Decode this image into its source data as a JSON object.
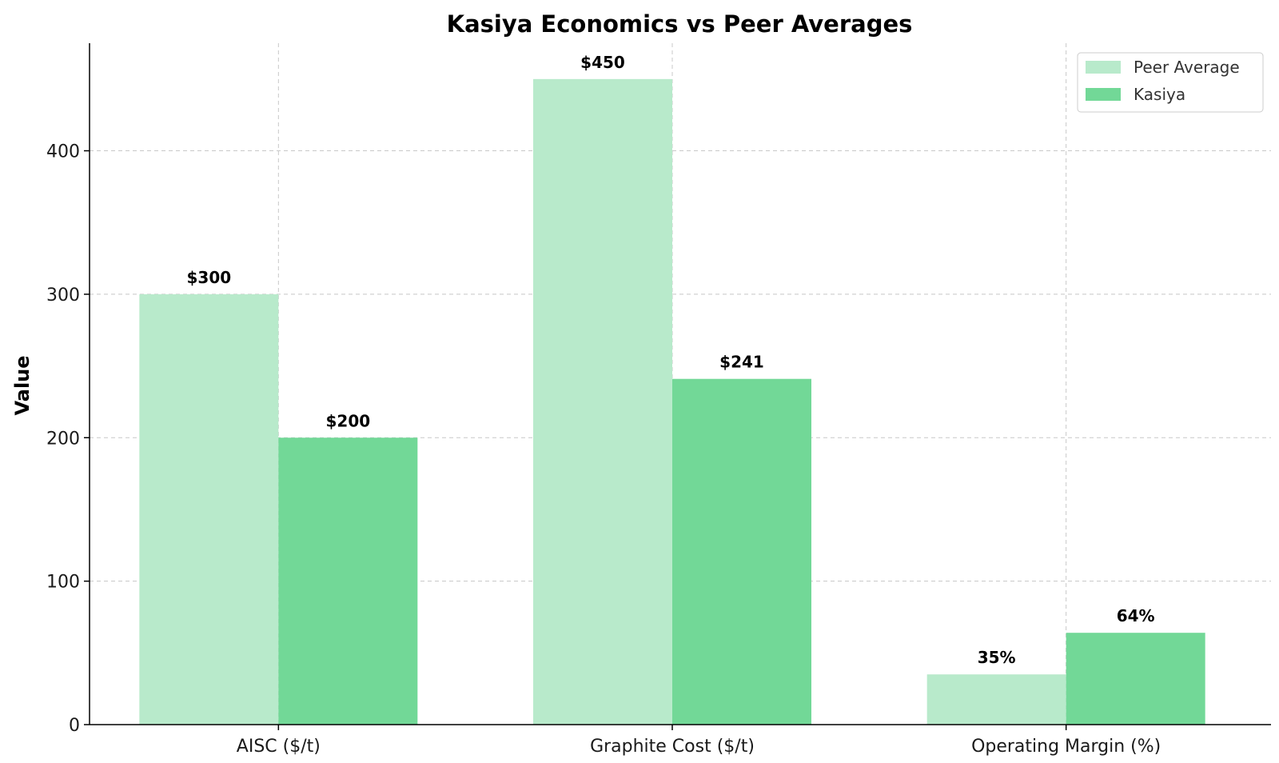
{
  "chart_data": {
    "type": "bar",
    "title": "Kasiya Economics vs Peer Averages",
    "xlabel": "",
    "ylabel": "Value",
    "categories": [
      "AISC ($/t)",
      "Graphite Cost ($/t)",
      "Operating Margin (%)"
    ],
    "series": [
      {
        "name": "Peer Average",
        "values": [
          300,
          450,
          35
        ],
        "labels": [
          "$300",
          "$450",
          "35%"
        ],
        "color": "#b8eacb"
      },
      {
        "name": "Kasiya",
        "values": [
          200,
          241,
          64
        ],
        "labels": [
          "$200",
          "$241",
          "64%"
        ],
        "color": "#72d897"
      }
    ],
    "ylim": [
      0,
      475
    ],
    "yticks": [
      0,
      100,
      200,
      300,
      400
    ],
    "grid": true,
    "legend_position": "top-right"
  }
}
